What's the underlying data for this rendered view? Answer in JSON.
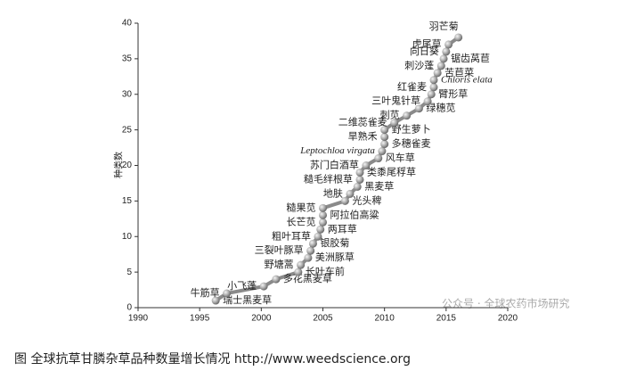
{
  "chart_data": {
    "type": "line",
    "y_label": "种类数",
    "xlim": [
      1990,
      2020
    ],
    "xticks": [
      1990,
      1995,
      2000,
      2005,
      2010,
      2015,
      2020
    ],
    "ylim": [
      0,
      40
    ],
    "yticks": [
      0,
      5,
      10,
      15,
      20,
      25,
      30,
      35,
      40
    ],
    "color": "#8a8a8a",
    "x": [
      1996.3,
      1997.2,
      2000.2,
      2001.2,
      2003,
      2003.2,
      2003.8,
      2004,
      2004.2,
      2004.6,
      2004.8,
      2005,
      2005,
      2005,
      2006.8,
      2007.2,
      2007.8,
      2008,
      2008,
      2008.5,
      2009.5,
      2009.8,
      2010,
      2010,
      2010,
      2010.8,
      2011.8,
      2012.8,
      2013.5,
      2013.8,
      2014,
      2014,
      2014.3,
      2014.6,
      2014.8,
      2015,
      2015.2,
      2016
    ],
    "values": [
      1,
      2,
      3,
      4,
      5,
      6,
      7,
      8,
      9,
      10,
      11,
      12,
      13,
      14,
      15,
      16,
      17,
      18,
      19,
      20,
      21,
      22,
      23,
      24,
      25,
      26,
      27,
      28,
      29,
      30,
      31,
      32,
      33,
      34,
      35,
      36,
      37,
      38
    ],
    "point_labels": [
      "瑞士黑麦草",
      "牛筋草",
      "小飞蓬",
      "多花黑麦草",
      "长叶车前",
      "野塘蒿",
      "美洲豚草",
      "三裂叶豚草",
      "银胶菊",
      "粗叶耳草",
      "两耳草",
      "长芒苋",
      "阿拉伯高粱",
      "糙果苋",
      "光头稗",
      "地肤",
      "黑麦草",
      "糙毛绊根草",
      "类黍尾稃草",
      "苏门白酒草",
      "风车草",
      "Leptochloa virgata",
      "多穗雀麦",
      "旱熟禾",
      "野生萝卜",
      "二维蕊雀麦",
      "刺苋",
      "绿穗苋",
      "三叶鬼针草",
      "臂形草",
      "红雀麦",
      "Chloris elata",
      "苦苣菜",
      "刺沙蓬",
      "锯齿莴苣",
      "向日葵",
      "虎尾草",
      "羽芒菊"
    ],
    "watermark": "公众号 · 全球农药市场研究"
  },
  "caption": "图 全球抗草甘膦杂草品种数量增长情况 http://www.weedscience.org"
}
